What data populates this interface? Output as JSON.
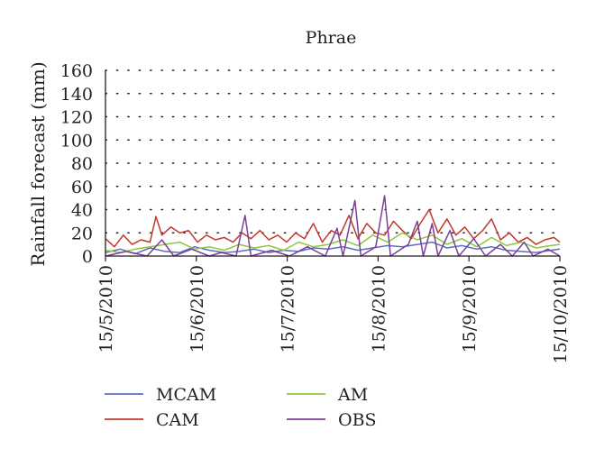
{
  "chart_data": {
    "type": "line",
    "title": "Phrae",
    "xlabel": "",
    "ylabel": "Rainfall forecast (mm)",
    "ylim": [
      0,
      160
    ],
    "yticks": [
      0,
      20,
      40,
      60,
      80,
      100,
      120,
      140,
      160
    ],
    "xlim": [
      "2010-05-15",
      "2010-10-15"
    ],
    "xtick_labels": [
      "15/5/2010",
      "15/6/2010",
      "15/7/2010",
      "15/8/2010",
      "15/9/2010",
      "15/10/2010"
    ],
    "grid": "horizontal dotted",
    "legend": "bottom, two columns",
    "series": [
      {
        "name": "MCAM",
        "color": "#5b6fc0",
        "points": [
          [
            "2010-05-15",
            3
          ],
          [
            "2010-05-20",
            6
          ],
          [
            "2010-05-25",
            2
          ],
          [
            "2010-05-30",
            7
          ],
          [
            "2010-06-04",
            4
          ],
          [
            "2010-06-09",
            3
          ],
          [
            "2010-06-14",
            8
          ],
          [
            "2010-06-19",
            5
          ],
          [
            "2010-06-24",
            3
          ],
          [
            "2010-06-29",
            4
          ],
          [
            "2010-07-04",
            6
          ],
          [
            "2010-07-09",
            3
          ],
          [
            "2010-07-14",
            5
          ],
          [
            "2010-07-19",
            4
          ],
          [
            "2010-07-24",
            7
          ],
          [
            "2010-07-29",
            6
          ],
          [
            "2010-08-03",
            8
          ],
          [
            "2010-08-08",
            5
          ],
          [
            "2010-08-13",
            7
          ],
          [
            "2010-08-18",
            9
          ],
          [
            "2010-08-23",
            8
          ],
          [
            "2010-08-28",
            10
          ],
          [
            "2010-09-02",
            12
          ],
          [
            "2010-09-07",
            7
          ],
          [
            "2010-09-12",
            9
          ],
          [
            "2010-09-17",
            6
          ],
          [
            "2010-09-22",
            8
          ],
          [
            "2010-09-27",
            5
          ],
          [
            "2010-10-02",
            4
          ],
          [
            "2010-10-07",
            3
          ],
          [
            "2010-10-12",
            5
          ],
          [
            "2010-10-15",
            6
          ]
        ]
      },
      {
        "name": "CAM",
        "color": "#c0392b",
        "points": [
          [
            "2010-05-15",
            15
          ],
          [
            "2010-05-18",
            8
          ],
          [
            "2010-05-21",
            18
          ],
          [
            "2010-05-24",
            10
          ],
          [
            "2010-05-27",
            14
          ],
          [
            "2010-05-30",
            12
          ],
          [
            "2010-06-01",
            34
          ],
          [
            "2010-06-03",
            18
          ],
          [
            "2010-06-06",
            25
          ],
          [
            "2010-06-09",
            20
          ],
          [
            "2010-06-12",
            22
          ],
          [
            "2010-06-15",
            12
          ],
          [
            "2010-06-18",
            18
          ],
          [
            "2010-06-21",
            14
          ],
          [
            "2010-06-24",
            16
          ],
          [
            "2010-06-27",
            12
          ],
          [
            "2010-06-30",
            20
          ],
          [
            "2010-07-03",
            15
          ],
          [
            "2010-07-06",
            22
          ],
          [
            "2010-07-09",
            14
          ],
          [
            "2010-07-12",
            18
          ],
          [
            "2010-07-15",
            12
          ],
          [
            "2010-07-18",
            20
          ],
          [
            "2010-07-21",
            15
          ],
          [
            "2010-07-24",
            28
          ],
          [
            "2010-07-27",
            12
          ],
          [
            "2010-07-30",
            22
          ],
          [
            "2010-08-02",
            18
          ],
          [
            "2010-08-05",
            35
          ],
          [
            "2010-08-08",
            15
          ],
          [
            "2010-08-11",
            28
          ],
          [
            "2010-08-14",
            20
          ],
          [
            "2010-08-17",
            18
          ],
          [
            "2010-08-20",
            30
          ],
          [
            "2010-08-23",
            22
          ],
          [
            "2010-08-26",
            15
          ],
          [
            "2010-08-29",
            28
          ],
          [
            "2010-09-01",
            40
          ],
          [
            "2010-09-04",
            20
          ],
          [
            "2010-09-07",
            32
          ],
          [
            "2010-09-10",
            18
          ],
          [
            "2010-09-13",
            25
          ],
          [
            "2010-09-16",
            15
          ],
          [
            "2010-09-19",
            22
          ],
          [
            "2010-09-22",
            32
          ],
          [
            "2010-09-25",
            14
          ],
          [
            "2010-09-28",
            20
          ],
          [
            "2010-10-01",
            12
          ],
          [
            "2010-10-04",
            16
          ],
          [
            "2010-10-07",
            10
          ],
          [
            "2010-10-10",
            14
          ],
          [
            "2010-10-13",
            16
          ],
          [
            "2010-10-15",
            12
          ]
        ]
      },
      {
        "name": "AM",
        "color": "#8dc63f",
        "points": [
          [
            "2010-05-15",
            5
          ],
          [
            "2010-05-20",
            3
          ],
          [
            "2010-05-25",
            6
          ],
          [
            "2010-05-30",
            8
          ],
          [
            "2010-06-04",
            10
          ],
          [
            "2010-06-09",
            12
          ],
          [
            "2010-06-14",
            6
          ],
          [
            "2010-06-19",
            8
          ],
          [
            "2010-06-24",
            5
          ],
          [
            "2010-06-29",
            10
          ],
          [
            "2010-07-04",
            7
          ],
          [
            "2010-07-09",
            9
          ],
          [
            "2010-07-14",
            5
          ],
          [
            "2010-07-19",
            12
          ],
          [
            "2010-07-24",
            8
          ],
          [
            "2010-07-29",
            10
          ],
          [
            "2010-08-03",
            14
          ],
          [
            "2010-08-08",
            9
          ],
          [
            "2010-08-13",
            18
          ],
          [
            "2010-08-18",
            12
          ],
          [
            "2010-08-23",
            20
          ],
          [
            "2010-08-28",
            14
          ],
          [
            "2010-09-02",
            18
          ],
          [
            "2010-09-07",
            10
          ],
          [
            "2010-09-12",
            15
          ],
          [
            "2010-09-17",
            8
          ],
          [
            "2010-09-22",
            16
          ],
          [
            "2010-09-27",
            9
          ],
          [
            "2010-10-02",
            12
          ],
          [
            "2010-10-07",
            7
          ],
          [
            "2010-10-12",
            9
          ],
          [
            "2010-10-15",
            10
          ]
        ]
      },
      {
        "name": "OBS",
        "color": "#7b3f98",
        "points": [
          [
            "2010-05-15",
            0
          ],
          [
            "2010-05-22",
            4
          ],
          [
            "2010-05-29",
            0
          ],
          [
            "2010-06-03",
            14
          ],
          [
            "2010-06-07",
            0
          ],
          [
            "2010-06-13",
            6
          ],
          [
            "2010-06-19",
            0
          ],
          [
            "2010-06-23",
            3
          ],
          [
            "2010-06-28",
            0
          ],
          [
            "2010-07-01",
            35
          ],
          [
            "2010-07-03",
            0
          ],
          [
            "2010-07-10",
            5
          ],
          [
            "2010-07-16",
            0
          ],
          [
            "2010-07-22",
            8
          ],
          [
            "2010-07-28",
            0
          ],
          [
            "2010-08-01",
            24
          ],
          [
            "2010-08-03",
            0
          ],
          [
            "2010-08-07",
            48
          ],
          [
            "2010-08-09",
            0
          ],
          [
            "2010-08-14",
            8
          ],
          [
            "2010-08-17",
            52
          ],
          [
            "2010-08-19",
            0
          ],
          [
            "2010-08-25",
            10
          ],
          [
            "2010-08-28",
            30
          ],
          [
            "2010-08-30",
            0
          ],
          [
            "2010-09-02",
            28
          ],
          [
            "2010-09-04",
            0
          ],
          [
            "2010-09-08",
            22
          ],
          [
            "2010-09-11",
            0
          ],
          [
            "2010-09-16",
            15
          ],
          [
            "2010-09-20",
            0
          ],
          [
            "2010-09-25",
            10
          ],
          [
            "2010-09-29",
            0
          ],
          [
            "2010-10-03",
            12
          ],
          [
            "2010-10-06",
            0
          ],
          [
            "2010-10-11",
            6
          ],
          [
            "2010-10-15",
            0
          ]
        ]
      }
    ]
  }
}
